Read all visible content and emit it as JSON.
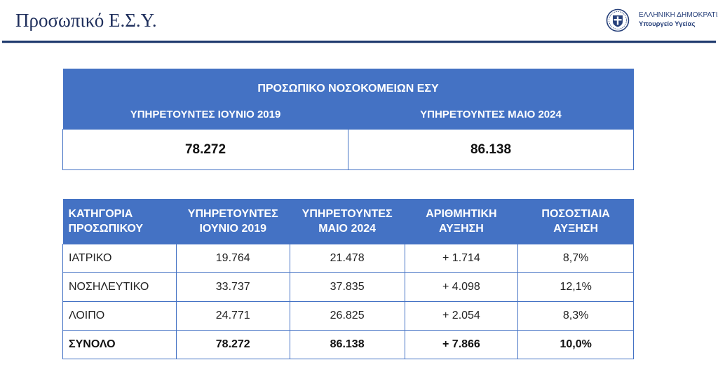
{
  "header": {
    "title": "Προσωπικό Ε.Σ.Υ.",
    "logo_line1": "ΕΛΛΗΝΙΚΗ ΔΗΜΟΚΡΑΤΙΑ",
    "logo_line2": "Υπουργείο Υγείας",
    "logo_icon": "greek-emblem-icon",
    "accent_color": "#1f3a6e"
  },
  "summary": {
    "title": "ΠΡΟΣΩΠΙΚΟ ΝΟΣΟΚΟΜΕΙΩΝ ΕΣΥ",
    "col1_label": "ΥΠΗΡΕΤΟΥΝΤΕΣ ΙΟΥΝΙΟ 2019",
    "col2_label": "ΥΠΗΡΕΤΟΥΝΤΕΣ ΜΑΙΟ 2024",
    "col1_value": "78.272",
    "col2_value": "86.138",
    "header_color": "#4472c4"
  },
  "detail": {
    "headers": [
      {
        "line1": "ΚΑΤΗΓΟΡΙΑ",
        "line2": "ΠΡΟΣΩΠΙΚΟΥ"
      },
      {
        "line1": "ΥΠΗΡΕΤΟΥΝΤΕΣ",
        "line2": "ΙΟΥΝΙΟ 2019"
      },
      {
        "line1": "ΥΠΗΡΕΤΟΥΝΤΕΣ",
        "line2": "ΜΑΙΟ 2024"
      },
      {
        "line1": "ΑΡΙΘΜΗΤΙΚΗ",
        "line2": "ΑΥΞΗΣΗ"
      },
      {
        "line1": "ΠΟΣΟΣΤΙΑΙΑ",
        "line2": "ΑΥΞΗΣΗ"
      }
    ],
    "rows": [
      [
        "ΙΑΤΡΙΚΟ",
        "19.764",
        "21.478",
        "+ 1.714",
        "8,7%"
      ],
      [
        "ΝΟΣΗΛΕΥΤΙΚΟ",
        "33.737",
        "37.835",
        "+ 4.098",
        "12,1%"
      ],
      [
        "ΛΟΙΠΟ",
        "24.771",
        "26.825",
        "+ 2.054",
        "8,3%"
      ]
    ],
    "total": [
      "ΣΥΝΟΛΟ",
      "78.272",
      "86.138",
      "+ 7.866",
      "10,0%"
    ]
  }
}
